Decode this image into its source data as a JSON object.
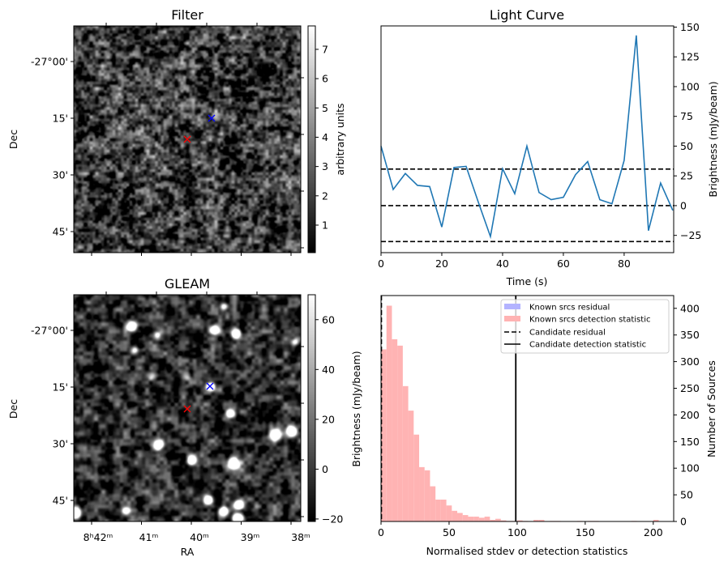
{
  "colors": {
    "line": "#1f77b4",
    "hist_detection": "#ffb3b3",
    "hist_residual": "#b3b3ff",
    "marker_candidate": "#ff0000",
    "marker_known": "#0000ff"
  },
  "chart_data": [
    {
      "type": "heatmap",
      "title": "Filter",
      "ylabel": "Dec",
      "yticklabels": [
        "-27°00'",
        "15'",
        "30'",
        "45'"
      ],
      "colorbar": {
        "label": "arbitrary units",
        "ticks": [
          1,
          2,
          3,
          4,
          5,
          6,
          7
        ],
        "range": [
          0.06,
          7.8
        ],
        "cmap": "gray"
      },
      "markers": [
        {
          "name": "candidate",
          "symbol": "x",
          "color": "#ff0000"
        },
        {
          "name": "known-source",
          "symbol": "x",
          "color": "#0000ff"
        }
      ]
    },
    {
      "type": "line",
      "title": "Light Curve",
      "xlabel": "Time (s)",
      "ylabel": "Brightness (mJy/beam)",
      "xlim": [
        0,
        96.3
      ],
      "ylim": [
        -39.5,
        151
      ],
      "xticks": [
        0,
        20,
        40,
        60,
        80
      ],
      "yticks": [
        -25,
        0,
        25,
        50,
        75,
        100,
        125,
        150
      ],
      "x": [
        0,
        4,
        8,
        12,
        16,
        20,
        24,
        28,
        32,
        36,
        40,
        44,
        48,
        52,
        56,
        60,
        64,
        68,
        72,
        76,
        80,
        84,
        88,
        92,
        96
      ],
      "y": [
        50,
        13.6,
        27,
        17,
        16,
        -18,
        32,
        33,
        3,
        -26,
        31,
        10,
        50,
        11,
        5,
        7,
        26,
        37,
        5,
        1.6,
        38,
        143,
        -21,
        19,
        -4
      ],
      "hlines": [
        {
          "y": 30.7,
          "style": "dashed"
        },
        {
          "y": 0,
          "style": "dashed"
        },
        {
          "y": -30.2,
          "style": "dashed"
        }
      ]
    },
    {
      "type": "heatmap",
      "title": "GLEAM",
      "xlabel": "RA",
      "ylabel": "Dec",
      "xticklabels": [
        "8ʰ42ᵐ",
        "41ᵐ",
        "40ᵐ",
        "39ᵐ",
        "38ᵐ"
      ],
      "yticklabels": [
        "-27°00'",
        "15'",
        "30'",
        "45'"
      ],
      "colorbar": {
        "label": "Brightness (mJy/beam)",
        "ticks": [
          -20,
          0,
          20,
          40,
          60
        ],
        "range": [
          -21,
          70
        ],
        "cmap": "gray"
      },
      "markers": [
        {
          "name": "candidate",
          "symbol": "x",
          "color": "#ff0000"
        },
        {
          "name": "known-source",
          "symbol": "x",
          "color": "#0000ff"
        }
      ]
    },
    {
      "type": "bar",
      "xlabel": "Normalised stdev or detection statistics",
      "ylabel_right": "Number of Sources",
      "xlim": [
        0,
        215
      ],
      "ylim": [
        0,
        424
      ],
      "xticks": [
        0,
        50,
        100,
        150,
        200
      ],
      "yticks": [
        0,
        50,
        100,
        150,
        200,
        250,
        300,
        350,
        400
      ],
      "bin_width": 4,
      "bin_start": 0,
      "counts": [
        323,
        405,
        342,
        330,
        254,
        208,
        163,
        102,
        96,
        66,
        41,
        41,
        30,
        20,
        16,
        12,
        9,
        9,
        7,
        9,
        3,
        5,
        2,
        1,
        1,
        2,
        1,
        0,
        3,
        3,
        0,
        1,
        1,
        0,
        0,
        0,
        1,
        0,
        1,
        1,
        0,
        0,
        0,
        0,
        0,
        0,
        1,
        0,
        0,
        0,
        3
      ],
      "candidate_residual": 0.3,
      "candidate_detection_statistic": 99,
      "legend": {
        "position": "top-right",
        "entries": [
          "Known srcs residual",
          "Known srcs detection statistic",
          "Candidate residual",
          "Candidate detection statistic"
        ]
      }
    }
  ]
}
